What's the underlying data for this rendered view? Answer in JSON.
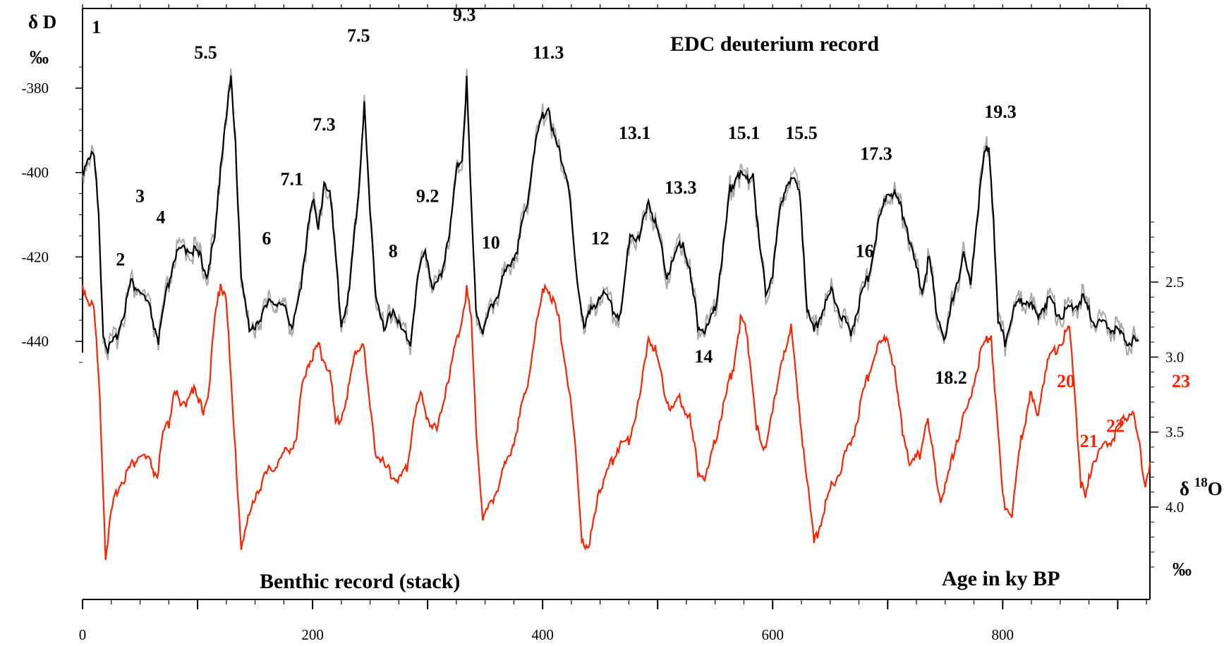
{
  "chart_data": {
    "type": "line",
    "title": "EDC deuterium record",
    "secondary_title": "Benthic record (stack)",
    "xlabel": "Age in ky BP",
    "xlim": [
      0,
      928
    ],
    "x_ticks": [
      0,
      200,
      400,
      600,
      800
    ],
    "left_axis": {
      "label": "δ D",
      "unit": "‰",
      "ticks": [
        -380,
        -400,
        -420,
        -440
      ],
      "range": [
        -380,
        -440
      ]
    },
    "right_axis": {
      "label": "δ 18O",
      "label_prefix": "δ ",
      "label_sup": "18",
      "label_suffix": "O",
      "unit": "‰",
      "ticks": [
        "2.5",
        "3.0",
        "3.5",
        "4.0"
      ],
      "range": [
        2.5,
        4.0
      ]
    },
    "colors": {
      "deuterium": "#000000",
      "deuterium_band": "#9a9a9a",
      "benthic": "#ff2200"
    },
    "series": [
      {
        "key": "deuterium",
        "name": "EDC deuterium record",
        "axis": "left",
        "x": [
          0,
          5,
          10,
          14,
          18,
          22,
          28,
          35,
          42,
          50,
          58,
          66,
          72,
          80,
          88,
          95,
          102,
          108,
          115,
          120,
          125,
          129,
          133,
          138,
          145,
          155,
          165,
          175,
          182,
          190,
          196,
          200,
          205,
          210,
          215,
          220,
          225,
          232,
          240,
          245,
          250,
          255,
          262,
          270,
          278,
          285,
          292,
          298,
          305,
          312,
          320,
          326,
          330,
          334,
          338,
          342,
          348,
          355,
          362,
          370,
          378,
          386,
          392,
          398,
          405,
          410,
          416,
          422,
          430,
          436,
          444,
          452,
          460,
          468,
          476,
          484,
          492,
          500,
          508,
          515,
          522,
          528,
          535,
          542,
          550,
          557,
          563,
          570,
          578,
          583,
          588,
          594,
          600,
          606,
          612,
          618,
          624,
          630,
          636,
          644,
          652,
          660,
          668,
          676,
          684,
          692,
          700,
          708,
          716,
          724,
          730,
          736,
          742,
          750,
          758,
          766,
          772,
          778,
          784,
          788,
          792,
          796,
          802,
          810,
          820,
          830,
          840,
          850,
          860,
          870,
          880,
          890,
          900,
          910,
          918
        ],
        "values": [
          -400,
          -396,
          -396,
          -410,
          -438,
          -442,
          -440,
          -434,
          -426,
          -428,
          -432,
          -440,
          -430,
          -420,
          -418,
          -418,
          -420,
          -424,
          -416,
          -398,
          -386,
          -378,
          -394,
          -424,
          -438,
          -434,
          -430,
          -432,
          -436,
          -428,
          -412,
          -406,
          -414,
          -402,
          -404,
          -420,
          -436,
          -428,
          -404,
          -384,
          -410,
          -428,
          -438,
          -432,
          -438,
          -440,
          -424,
          -418,
          -428,
          -424,
          -412,
          -398,
          -396,
          -378,
          -408,
          -432,
          -438,
          -432,
          -428,
          -422,
          -418,
          -408,
          -396,
          -388,
          -384,
          -392,
          -396,
          -402,
          -426,
          -436,
          -432,
          -428,
          -432,
          -434,
          -414,
          -416,
          -406,
          -414,
          -424,
          -420,
          -416,
          -424,
          -436,
          -438,
          -432,
          -418,
          -404,
          -400,
          -402,
          -400,
          -416,
          -428,
          -424,
          -410,
          -402,
          -402,
          -406,
          -432,
          -438,
          -432,
          -428,
          -434,
          -438,
          -430,
          -424,
          -412,
          -404,
          -406,
          -412,
          -422,
          -428,
          -420,
          -432,
          -440,
          -428,
          -420,
          -426,
          -410,
          -396,
          -394,
          -410,
          -436,
          -440,
          -432,
          -430,
          -434,
          -430,
          -434,
          -432,
          -430,
          -436,
          -436,
          -438,
          -440,
          -440
        ]
      },
      {
        "key": "benthic",
        "name": "Benthic record (stack)",
        "axis": "right",
        "x": [
          0,
          5,
          10,
          15,
          20,
          25,
          30,
          40,
          50,
          58,
          65,
          70,
          75,
          80,
          85,
          90,
          95,
          100,
          105,
          110,
          115,
          120,
          125,
          130,
          138,
          143,
          150,
          160,
          170,
          180,
          186,
          190,
          195,
          200,
          205,
          210,
          215,
          220,
          225,
          232,
          238,
          244,
          250,
          255,
          260,
          268,
          275,
          282,
          288,
          294,
          300,
          308,
          316,
          322,
          328,
          334,
          338,
          342,
          348,
          355,
          365,
          375,
          385,
          395,
          402,
          408,
          414,
          420,
          428,
          434,
          440,
          448,
          455,
          465,
          475,
          485,
          492,
          498,
          505,
          512,
          520,
          528,
          535,
          542,
          550,
          558,
          566,
          572,
          576,
          580,
          586,
          592,
          598,
          604,
          610,
          616,
          622,
          630,
          636,
          640,
          646,
          652,
          660,
          670,
          680,
          690,
          700,
          706,
          712,
          720,
          728,
          734,
          740,
          746,
          752,
          760,
          770,
          782,
          790,
          795,
          800,
          808,
          816,
          824,
          830,
          838,
          846,
          852,
          858,
          862,
          868,
          872,
          878,
          884,
          890,
          898,
          906,
          912,
          918,
          924,
          928
        ],
        "values": [
          2.52,
          2.62,
          2.68,
          3.25,
          4.32,
          4.05,
          3.88,
          3.75,
          3.65,
          3.7,
          3.8,
          3.52,
          3.45,
          3.2,
          3.35,
          3.3,
          3.18,
          3.3,
          3.35,
          3.2,
          2.75,
          2.5,
          2.6,
          3.3,
          4.25,
          4.12,
          3.92,
          3.78,
          3.7,
          3.6,
          3.55,
          3.25,
          3.05,
          3.0,
          2.92,
          3.02,
          3.08,
          3.45,
          3.4,
          3.18,
          2.95,
          2.9,
          3.35,
          3.62,
          3.7,
          3.78,
          3.82,
          3.75,
          3.4,
          3.25,
          3.4,
          3.5,
          3.2,
          3.0,
          2.8,
          2.55,
          2.75,
          3.45,
          4.08,
          3.98,
          3.78,
          3.55,
          3.25,
          2.78,
          2.5,
          2.6,
          2.75,
          3.05,
          3.55,
          4.2,
          4.3,
          3.9,
          3.8,
          3.6,
          3.55,
          3.25,
          2.85,
          2.95,
          3.2,
          3.35,
          3.28,
          3.42,
          3.75,
          3.82,
          3.55,
          3.3,
          3.05,
          2.75,
          2.8,
          3.0,
          3.45,
          3.65,
          3.4,
          3.22,
          2.95,
          2.8,
          3.3,
          3.8,
          4.25,
          4.15,
          3.98,
          3.85,
          3.72,
          3.52,
          3.2,
          2.95,
          2.85,
          3.1,
          3.45,
          3.72,
          3.65,
          3.4,
          3.68,
          3.95,
          3.82,
          3.55,
          3.32,
          2.95,
          2.85,
          3.4,
          3.95,
          4.05,
          3.55,
          3.25,
          3.4,
          3.05,
          2.95,
          2.88,
          2.82,
          3.15,
          3.85,
          3.95,
          3.7,
          3.65,
          3.58,
          3.52,
          3.4,
          3.35,
          3.55,
          3.85,
          3.7
        ]
      }
    ],
    "stage_labels_black": [
      {
        "text": "1",
        "x": 12,
        "v": -367
      },
      {
        "text": "2",
        "x": 33,
        "v": -422
      },
      {
        "text": "3",
        "x": 50,
        "v": -407
      },
      {
        "text": "4",
        "x": 68,
        "v": -412
      },
      {
        "text": "5.5",
        "x": 107,
        "v": -373
      },
      {
        "text": "6",
        "x": 160,
        "v": -417
      },
      {
        "text": "7.1",
        "x": 182,
        "v": -403
      },
      {
        "text": "7.3",
        "x": 210,
        "v": -390
      },
      {
        "text": "7.5",
        "x": 240,
        "v": -369
      },
      {
        "text": "8",
        "x": 270,
        "v": -420
      },
      {
        "text": "9.2",
        "x": 300,
        "v": -407
      },
      {
        "text": "9.3",
        "x": 332,
        "v": -364
      },
      {
        "text": "10",
        "x": 355,
        "v": -418
      },
      {
        "text": "11.3",
        "x": 405,
        "v": -373
      },
      {
        "text": "12",
        "x": 450,
        "v": -417
      },
      {
        "text": "13.1",
        "x": 480,
        "v": -392
      },
      {
        "text": "13.3",
        "x": 520,
        "v": -405
      },
      {
        "text": "14",
        "x": 540,
        "v": -445
      },
      {
        "text": "15.1",
        "x": 575,
        "v": -392
      },
      {
        "text": "15.5",
        "x": 625,
        "v": -392
      },
      {
        "text": "16",
        "x": 680,
        "v": -420
      },
      {
        "text": "17.3",
        "x": 690,
        "v": -397
      },
      {
        "text": "18.2",
        "x": 755,
        "v": -450
      },
      {
        "text": "19.3",
        "x": 798,
        "v": -387
      }
    ],
    "stage_labels_red": [
      {
        "text": "20",
        "x": 855,
        "v": 3.2
      },
      {
        "text": "21",
        "x": 875,
        "v": 3.6
      },
      {
        "text": "22",
        "x": 898,
        "v": 3.5
      },
      {
        "text": "23",
        "x": 955,
        "v": 3.2
      }
    ]
  }
}
